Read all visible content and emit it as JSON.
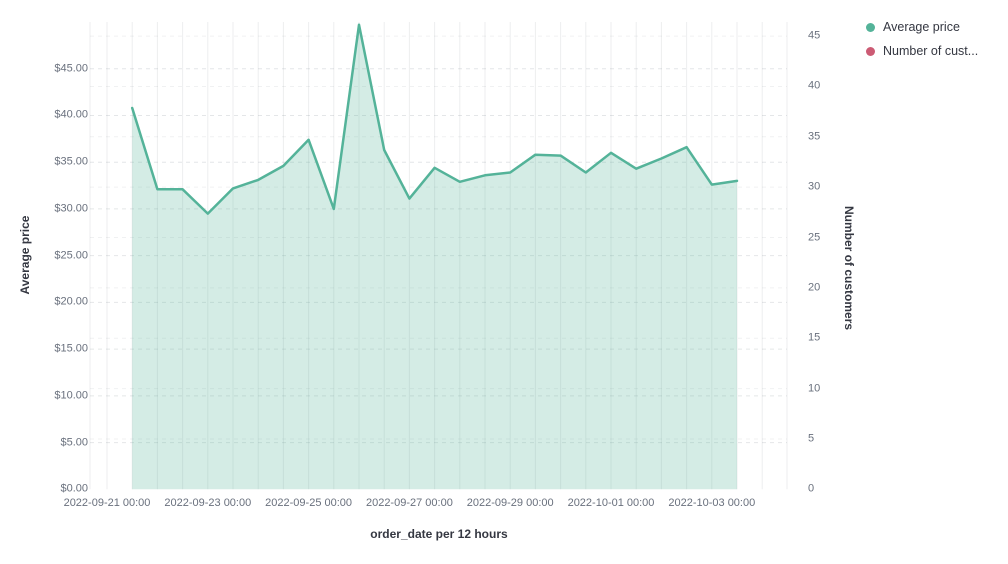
{
  "chart_data": {
    "type": "area",
    "title": "",
    "xlabel": "order_date per 12 hours",
    "left_axis": {
      "label": "Average price",
      "range": [
        0,
        50
      ],
      "tick_values": [
        0,
        5,
        10,
        15,
        20,
        25,
        30,
        35,
        40,
        45
      ],
      "tick_labels": [
        "$0.00",
        "$5.00",
        "$10.00",
        "$15.00",
        "$20.00",
        "$25.00",
        "$30.00",
        "$35.00",
        "$40.00",
        "$45.00"
      ]
    },
    "right_axis": {
      "label": "Number of customers",
      "range": [
        0,
        46.4
      ],
      "tick_values": [
        0,
        5,
        10,
        15,
        20,
        25,
        30,
        35,
        40,
        45
      ],
      "tick_labels": [
        "0",
        "5",
        "10",
        "15",
        "20",
        "25",
        "30",
        "35",
        "40",
        "45"
      ]
    },
    "x_axis": {
      "interval": "12 hours",
      "tick_labels": [
        "2022-09-21 00:00",
        "2022-09-23 00:00",
        "2022-09-25 00:00",
        "2022-09-27 00:00",
        "2022-09-29 00:00",
        "2022-10-01 00:00",
        "2022-10-03 00:00"
      ]
    },
    "grid": {
      "horizontal": "dashed",
      "vertical": "solid"
    },
    "series": [
      {
        "name": "Average price",
        "axis": "left",
        "color": "#54b399",
        "fill": "rgba(84,179,153,0.25)",
        "x": [
          "2022-09-21 12:00",
          "2022-09-22 00:00",
          "2022-09-22 12:00",
          "2022-09-23 00:00",
          "2022-09-23 12:00",
          "2022-09-24 00:00",
          "2022-09-24 12:00",
          "2022-09-25 00:00",
          "2022-09-25 12:00",
          "2022-09-26 00:00",
          "2022-09-26 12:00",
          "2022-09-27 00:00",
          "2022-09-27 12:00",
          "2022-09-28 00:00",
          "2022-09-28 12:00",
          "2022-09-29 00:00",
          "2022-09-29 12:00",
          "2022-09-30 00:00",
          "2022-09-30 12:00",
          "2022-10-01 00:00",
          "2022-10-01 12:00",
          "2022-10-02 00:00",
          "2022-10-02 12:00",
          "2022-10-03 00:00",
          "2022-10-03 12:00"
        ],
        "values": [
          40.8,
          32.1,
          32.1,
          29.5,
          32.2,
          33.1,
          34.6,
          37.4,
          30.0,
          49.7,
          36.3,
          31.1,
          34.4,
          32.9,
          33.6,
          33.9,
          35.8,
          35.7,
          33.9,
          36.0,
          34.3,
          35.4,
          36.6,
          32.6,
          33.0
        ]
      },
      {
        "name": "Number of customers",
        "axis": "right",
        "color": "#cc5b74",
        "x": [],
        "values": []
      }
    ],
    "legend": {
      "position": "top-right",
      "items": [
        {
          "label": "Average price",
          "color": "#54b399"
        },
        {
          "label": "Number of cust...",
          "color": "#cc5b74"
        }
      ]
    }
  }
}
